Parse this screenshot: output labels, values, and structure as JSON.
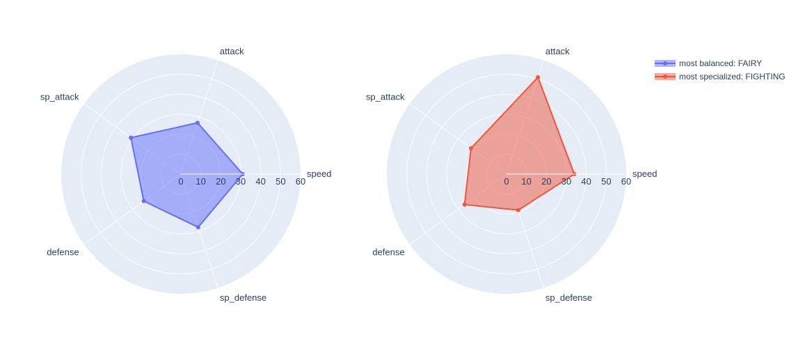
{
  "chart_data": {
    "type": "radar",
    "categories": [
      "speed",
      "attack",
      "sp_attack",
      "defense",
      "sp_defense"
    ],
    "radial_range": [
      0,
      60
    ],
    "radial_ticks": [
      0,
      10,
      20,
      30,
      40,
      50,
      60
    ],
    "charts": [
      {
        "series_index": 0
      },
      {
        "series_index": 1
      }
    ],
    "series": [
      {
        "name": "most balanced: FAIRY",
        "values": [
          31,
          27,
          31,
          23,
          28
        ],
        "color": "#636efa"
      },
      {
        "name": "most specialized: FIGHTING",
        "values": [
          34,
          51,
          22,
          26,
          19
        ],
        "color": "#ef553b"
      }
    ],
    "legend_position": "top-right",
    "background_color": "#e5ecf6",
    "grid_color": "#ffffff"
  }
}
